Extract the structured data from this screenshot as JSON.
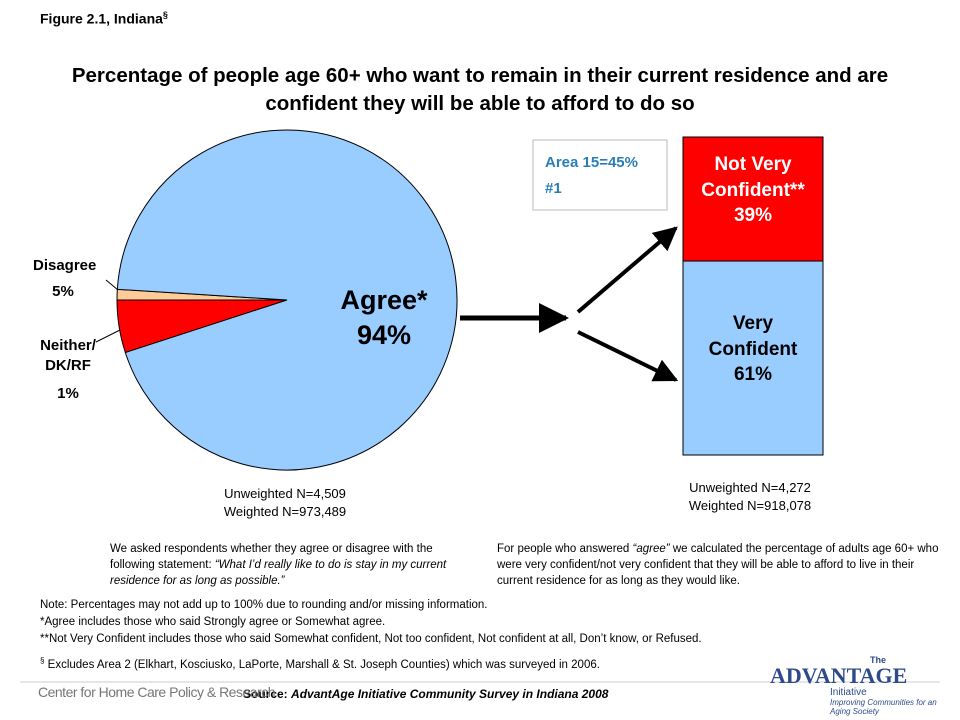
{
  "figure_label": {
    "text": "Figure 2.1, Indiana",
    "mark": "§"
  },
  "title": "Percentage of people age 60+ who want to remain in their current residence and are confident they will be able to afford to do so",
  "callout": [
    "Area 15=45%",
    "#1"
  ],
  "chart_data": [
    {
      "type": "pie",
      "categories": [
        "Disagree",
        "Neither/ DK/RF",
        "Agree*"
      ],
      "values": [
        5,
        1,
        94
      ],
      "value_labels": [
        "5%",
        "1%",
        "94%"
      ],
      "colors": [
        "#ff0000",
        "#ffcc99",
        "#99ccff"
      ],
      "sample": [
        "Unweighted N=4,509",
        "Weighted N=973,489"
      ]
    },
    {
      "type": "bar",
      "stacked": true,
      "series": [
        {
          "name": "Very Confident",
          "color": "#99ccff",
          "values": [
            61
          ],
          "value_labels": [
            "61%"
          ]
        },
        {
          "name": "Not Very Confident**",
          "color": "#ff0000",
          "values": [
            39
          ],
          "value_labels": [
            "39%"
          ]
        }
      ],
      "ylim": [
        0,
        100
      ],
      "sample": [
        "Unweighted N=4,272",
        "Weighted N=918,078"
      ]
    }
  ],
  "left_note": {
    "text": "We asked respondents whether they agree or disagree with the following statement:",
    "quote": "“What I’d really like to do is stay in my current residence for as long as possible.”"
  },
  "right_note": {
    "text": "For people who answered",
    "quote": "“agree”",
    "rest": "we calculated the percentage of adults age 60+ who were very confident/not very confident that they will be able to afford to live in their current residence for as long as they would like."
  },
  "notes": [
    "Note: Percentages may not add up to 100% due to rounding and/or missing information.",
    "*Agree includes those who said Strongly agree or Somewhat agree.",
    "**Not Very Confident includes those who said Somewhat confident, Not too confident, Not confident at all, Don’t know, or Refused."
  ],
  "footnote": {
    "mark": "§",
    "text": "Excludes Area 2 (Elkhart, Kosciusko, LaPorte, Marshall & St. Joseph Counties) which was surveyed in 2006."
  },
  "source": {
    "label": "Source:",
    "text": "AdvantAge Initiative Community Survey in Indiana 2008"
  },
  "logos": {
    "left": "Center for Home Care Policy & Research",
    "right_top": "The",
    "right_main": "ADVANTAGE",
    "right_sub": "Initiative",
    "right_tag": "Improving Communities for an Aging Society"
  }
}
